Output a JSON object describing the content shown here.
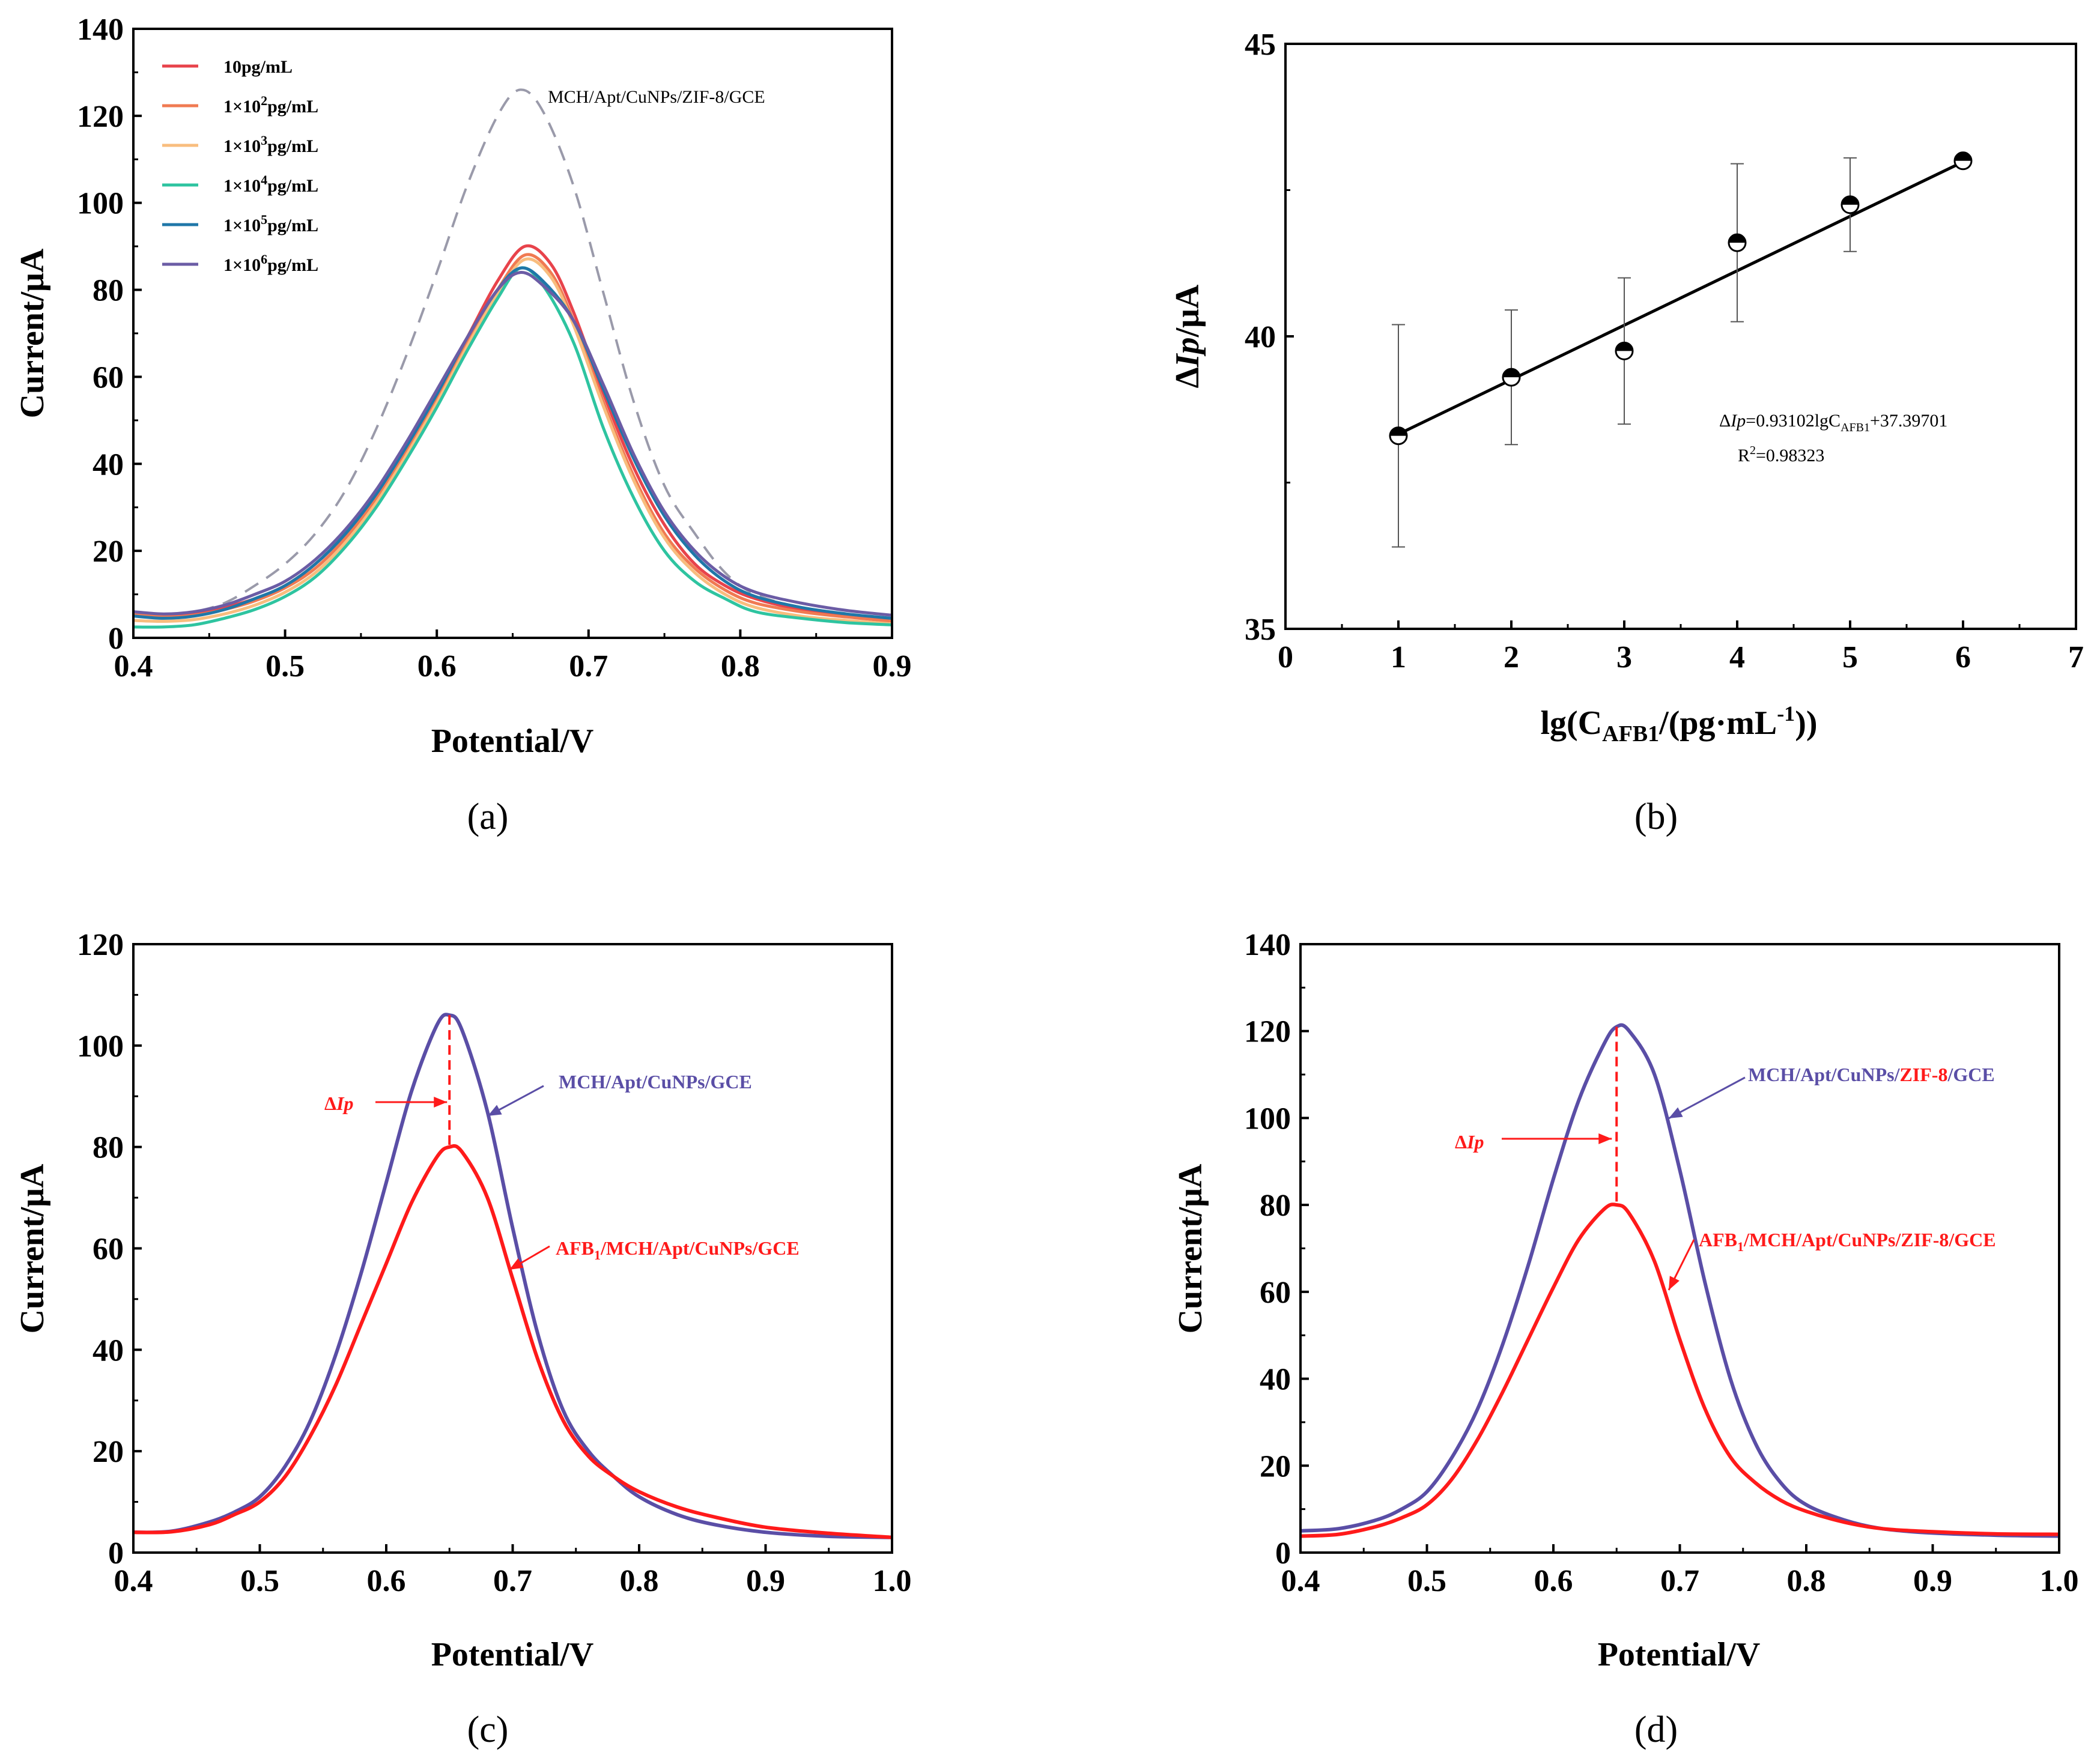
{
  "chart_data": [
    {
      "id": "a",
      "type": "line",
      "panel_label": "(a)",
      "xlabel": "Potential/V",
      "ylabel": "Current/μA",
      "xlim": [
        0.4,
        0.9
      ],
      "ylim": [
        0,
        140
      ],
      "xticks": [
        "0.4",
        "0.5",
        "0.6",
        "0.7",
        "0.8",
        "0.9"
      ],
      "yticks": [
        "0",
        "20",
        "40",
        "60",
        "80",
        "100",
        "120",
        "140"
      ],
      "legend": {
        "placement": "top-left",
        "entries": [
          {
            "base": "10pg/mL",
            "sup": "",
            "tail": "",
            "color": "#e8434b"
          },
          {
            "base": "1×10",
            "sup": "2",
            "tail": "pg/mL",
            "color": "#f07a52"
          },
          {
            "base": "1×10",
            "sup": "3",
            "tail": "pg/mL",
            "color": "#f8bd7e"
          },
          {
            "base": "1×10",
            "sup": "4",
            "tail": "pg/mL",
            "color": "#2ec4a0"
          },
          {
            "base": "1×10",
            "sup": "5",
            "tail": "pg/mL",
            "color": "#1f77a8"
          },
          {
            "base": "1×10",
            "sup": "6",
            "tail": "pg/mL",
            "color": "#6b5ca5"
          }
        ]
      },
      "reference_curve": {
        "name": "MCH/Apt/CuNPs/ZIF-8/GCE",
        "color": "#9a9aaa",
        "style": "dashed",
        "x": [
          0.41,
          0.42,
          0.44,
          0.46,
          0.48,
          0.5,
          0.52,
          0.54,
          0.56,
          0.58,
          0.6,
          0.62,
          0.64,
          0.655,
          0.67,
          0.69,
          0.71,
          0.73,
          0.75,
          0.77,
          0.79,
          0.81,
          0.84,
          0.87,
          0.9
        ],
        "y": [
          5.5,
          5.3,
          6,
          8,
          12,
          17,
          24,
          34,
          48,
          65,
          84,
          104,
          120,
          126,
          121,
          104,
          79,
          54,
          35,
          24,
          15,
          10,
          7,
          5.5,
          4.5
        ]
      },
      "series": [
        {
          "name": "10pg/mL",
          "color": "#e8434b",
          "x": [
            0.4,
            0.42,
            0.44,
            0.46,
            0.48,
            0.5,
            0.52,
            0.54,
            0.56,
            0.58,
            0.6,
            0.62,
            0.64,
            0.658,
            0.675,
            0.69,
            0.71,
            0.73,
            0.75,
            0.77,
            0.79,
            0.81,
            0.84,
            0.87,
            0.9
          ],
          "y": [
            6,
            5,
            5.5,
            7,
            9,
            12,
            17,
            24,
            33,
            44,
            56,
            69,
            82,
            90,
            86,
            75,
            56,
            39,
            26,
            17,
            12,
            9,
            6.5,
            5,
            4
          ]
        },
        {
          "name": "1×10²pg/mL",
          "color": "#f07a52",
          "x": [
            0.4,
            0.42,
            0.44,
            0.46,
            0.48,
            0.5,
            0.52,
            0.54,
            0.56,
            0.58,
            0.6,
            0.62,
            0.64,
            0.658,
            0.675,
            0.69,
            0.71,
            0.73,
            0.75,
            0.77,
            0.79,
            0.81,
            0.84,
            0.87,
            0.9
          ],
          "y": [
            5.5,
            4.8,
            5.2,
            6.5,
            8.5,
            11.5,
            16,
            23,
            32,
            43,
            55,
            68,
            80,
            88,
            84,
            73,
            54,
            37,
            24,
            16,
            11,
            8,
            6,
            4.8,
            3.8
          ]
        },
        {
          "name": "1×10³pg/mL",
          "color": "#f8bd7e",
          "x": [
            0.4,
            0.42,
            0.44,
            0.46,
            0.48,
            0.5,
            0.52,
            0.54,
            0.56,
            0.58,
            0.6,
            0.62,
            0.64,
            0.658,
            0.675,
            0.69,
            0.71,
            0.73,
            0.75,
            0.77,
            0.79,
            0.81,
            0.84,
            0.87,
            0.9
          ],
          "y": [
            4,
            3.8,
            4.2,
            5.5,
            7.5,
            10.5,
            15,
            22,
            31,
            42,
            54,
            67,
            79,
            87,
            83,
            72,
            53,
            36,
            23,
            15,
            10,
            7,
            5,
            4,
            3.2
          ]
        },
        {
          "name": "1×10⁴pg/mL",
          "color": "#2ec4a0",
          "x": [
            0.4,
            0.42,
            0.44,
            0.46,
            0.48,
            0.5,
            0.52,
            0.54,
            0.56,
            0.58,
            0.6,
            0.62,
            0.64,
            0.655,
            0.67,
            0.69,
            0.71,
            0.73,
            0.75,
            0.77,
            0.79,
            0.81,
            0.84,
            0.87,
            0.9
          ],
          "y": [
            2.5,
            2.5,
            3,
            4.5,
            6.5,
            9.5,
            14,
            21,
            30,
            41,
            53,
            66,
            78,
            85,
            81,
            68,
            48,
            32,
            20,
            13,
            9,
            6,
            4.5,
            3.5,
            3
          ]
        },
        {
          "name": "1×10⁵pg/mL",
          "color": "#1f77a8",
          "x": [
            0.4,
            0.42,
            0.44,
            0.46,
            0.48,
            0.5,
            0.52,
            0.54,
            0.56,
            0.58,
            0.6,
            0.62,
            0.64,
            0.655,
            0.67,
            0.69,
            0.71,
            0.73,
            0.75,
            0.77,
            0.79,
            0.81,
            0.84,
            0.87,
            0.9
          ],
          "y": [
            5,
            4.5,
            5,
            6.5,
            9,
            12,
            17,
            24,
            33,
            44,
            56,
            69,
            80,
            85,
            82,
            73,
            57,
            41,
            28,
            19,
            13,
            9.5,
            7,
            5.5,
            4.5
          ]
        },
        {
          "name": "1×10⁶pg/mL",
          "color": "#6b5ca5",
          "x": [
            0.4,
            0.42,
            0.44,
            0.46,
            0.48,
            0.5,
            0.52,
            0.54,
            0.56,
            0.58,
            0.6,
            0.62,
            0.64,
            0.655,
            0.67,
            0.69,
            0.71,
            0.73,
            0.75,
            0.77,
            0.79,
            0.81,
            0.84,
            0.87,
            0.9
          ],
          "y": [
            6,
            5.5,
            6,
            7.5,
            10,
            13,
            18,
            25,
            34,
            45,
            57,
            69,
            80,
            84,
            81,
            73,
            58,
            42,
            29,
            20,
            14,
            10.5,
            8,
            6.3,
            5.2
          ]
        }
      ]
    },
    {
      "id": "b",
      "type": "scatter",
      "panel_label": "(b)",
      "xlabel": {
        "pre": "lg(C",
        "sub": "AFB1",
        "mid": "/(pg·mL",
        "sup": "-1",
        "post": "))"
      },
      "ylabel": {
        "pre": "Δ",
        "italic": "Ip",
        "post": "/μA"
      },
      "xlim": [
        0,
        7
      ],
      "ylim": [
        35,
        45
      ],
      "xticks": [
        "0",
        "1",
        "2",
        "3",
        "4",
        "5",
        "6",
        "7"
      ],
      "yticks": [
        "35",
        "40",
        "45"
      ],
      "points": [
        {
          "x": 1,
          "y": 38.3,
          "err": 1.9
        },
        {
          "x": 2,
          "y": 39.3,
          "err": 1.15
        },
        {
          "x": 3,
          "y": 39.75,
          "err": 1.25
        },
        {
          "x": 4,
          "y": 41.6,
          "err": 1.35
        },
        {
          "x": 5,
          "y": 42.25,
          "err": 0.8
        },
        {
          "x": 6,
          "y": 43.0,
          "err": 0
        }
      ],
      "fit": {
        "slope": 0.93102,
        "intercept": 37.39701,
        "x_range": [
          1,
          6
        ]
      },
      "equation": {
        "pre": "Δ",
        "italic": "Ip",
        "mid": "=0.93102lgC",
        "sub": "AFB1",
        "post": "+37.39701"
      },
      "r_squared": {
        "pre": "R",
        "sup": "2",
        "post": "=0.98323"
      }
    },
    {
      "id": "c",
      "type": "line",
      "panel_label": "(c)",
      "xlabel": "Potential/V",
      "ylabel": "Current/μA",
      "xlim": [
        0.4,
        1.0
      ],
      "ylim": [
        0,
        120
      ],
      "xticks": [
        "0.4",
        "0.5",
        "0.6",
        "0.7",
        "0.8",
        "0.9",
        "1.0"
      ],
      "yticks": [
        "0",
        "20",
        "40",
        "60",
        "80",
        "100",
        "120"
      ],
      "series": [
        {
          "name": "MCH/Apt/CuNPs/GCE",
          "color": "#5a4ea6",
          "x": [
            0.4,
            0.43,
            0.46,
            0.48,
            0.5,
            0.52,
            0.54,
            0.56,
            0.58,
            0.6,
            0.62,
            0.64,
            0.65,
            0.66,
            0.68,
            0.7,
            0.72,
            0.74,
            0.76,
            0.78,
            0.8,
            0.83,
            0.86,
            0.9,
            0.95,
            1.0
          ],
          "y": [
            4,
            4.2,
            6,
            8,
            11,
            17,
            26,
            39,
            55,
            73,
            91,
            104,
            106,
            103,
            87,
            64,
            43,
            28,
            20,
            15,
            11,
            7.5,
            5.5,
            4,
            3.2,
            3
          ]
        },
        {
          "name": "AFB1/MCH/Apt/CuNPs/GCE",
          "color": "#ff1a1a",
          "x": [
            0.4,
            0.43,
            0.46,
            0.48,
            0.5,
            0.52,
            0.54,
            0.56,
            0.58,
            0.6,
            0.62,
            0.64,
            0.65,
            0.66,
            0.68,
            0.7,
            0.72,
            0.74,
            0.76,
            0.78,
            0.8,
            0.83,
            0.86,
            0.9,
            0.95,
            1.0
          ],
          "y": [
            4,
            4.1,
            5.5,
            7.5,
            10,
            15,
            23,
            33,
            45,
            57,
            69,
            78,
            80,
            79,
            70,
            54,
            38,
            26,
            19,
            15,
            12,
            9,
            7,
            5,
            3.8,
            3
          ]
        }
      ],
      "annotations": {
        "delta": {
          "pre": "Δ",
          "italic": "Ip"
        },
        "upper": {
          "text": "MCH/Apt/CuNPs/GCE"
        },
        "lower": {
          "pre": "AFB",
          "sub": "1",
          "post": "/MCH/Apt/CuNPs/GCE"
        }
      }
    },
    {
      "id": "d",
      "type": "line",
      "panel_label": "(d)",
      "xlabel": "Potential/V",
      "ylabel": "Current/μA",
      "xlim": [
        0.4,
        1.0
      ],
      "ylim": [
        0,
        140
      ],
      "xticks": [
        "0.4",
        "0.5",
        "0.6",
        "0.7",
        "0.8",
        "0.9",
        "1.0"
      ],
      "yticks": [
        "0",
        "20",
        "40",
        "60",
        "80",
        "100",
        "120",
        "140"
      ],
      "series": [
        {
          "name": "MCH/Apt/CuNPs/ZIF-8/GCE",
          "color": "#5a4ea6",
          "x": [
            0.4,
            0.43,
            0.46,
            0.48,
            0.5,
            0.52,
            0.54,
            0.56,
            0.58,
            0.6,
            0.62,
            0.64,
            0.65,
            0.66,
            0.68,
            0.7,
            0.72,
            0.74,
            0.76,
            0.78,
            0.8,
            0.83,
            0.86,
            0.9,
            0.95,
            1.0
          ],
          "y": [
            5,
            5.5,
            7.5,
            10,
            14,
            22,
            33,
            48,
            66,
            86,
            104,
            117,
            121,
            120,
            110,
            88,
            62,
            40,
            25,
            16,
            11,
            7.5,
            5.5,
            4.5,
            4,
            3.8
          ]
        },
        {
          "name": "AFB1/MCH/Apt/CuNPs/ZIF-8/GCE",
          "color": "#ff1a1a",
          "x": [
            0.4,
            0.43,
            0.46,
            0.48,
            0.5,
            0.52,
            0.54,
            0.56,
            0.58,
            0.6,
            0.62,
            0.64,
            0.65,
            0.66,
            0.68,
            0.7,
            0.72,
            0.74,
            0.76,
            0.78,
            0.8,
            0.83,
            0.86,
            0.9,
            0.95,
            1.0
          ],
          "y": [
            3.8,
            4.2,
            6,
            8,
            11,
            17,
            26,
            37,
            49,
            61,
            72,
            79,
            80,
            78,
            67,
            49,
            33,
            22,
            16,
            12,
            9.5,
            7,
            5.5,
            4.8,
            4.3,
            4.2
          ]
        }
      ],
      "annotations": {
        "delta": {
          "pre": "Δ",
          "italic": "Ip"
        },
        "upper": {
          "pre": "MCH/Apt/CuNPs/",
          "highlight": "ZIF-8",
          "post": "/GCE"
        },
        "lower": {
          "pre": "AFB",
          "sub": "1",
          "post": "/MCH/Apt/CuNPs/ZIF-8/GCE"
        }
      }
    }
  ]
}
